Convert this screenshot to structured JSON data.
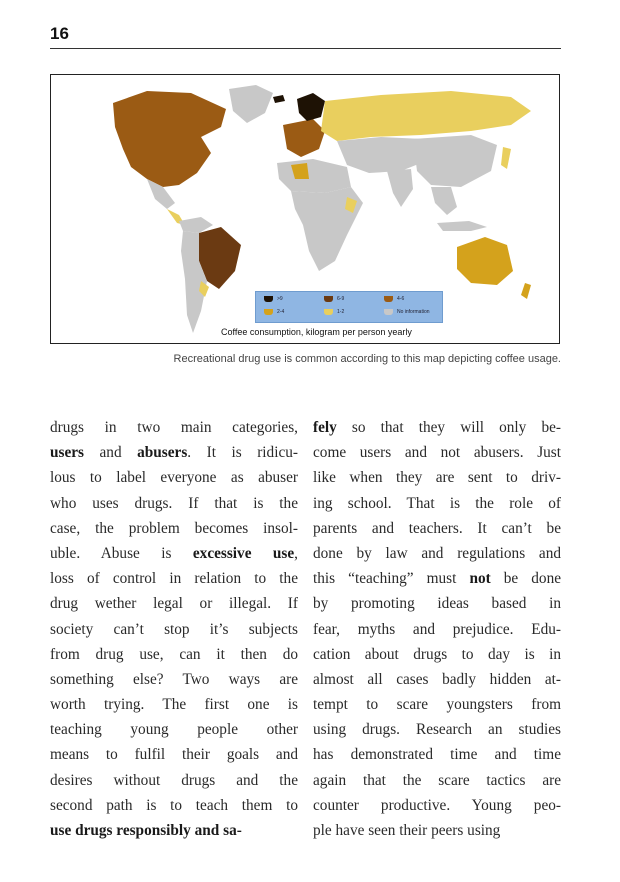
{
  "page": {
    "number": "16"
  },
  "figure": {
    "map_title": "Coffee consumption, kilogram per person yearly",
    "legend": [
      {
        "label": ">9",
        "color": "#1e1205"
      },
      {
        "label": "6-9",
        "color": "#6b3a12"
      },
      {
        "label": "4-6",
        "color": "#9b5b14"
      },
      {
        "label": "2-4",
        "color": "#d4a21c"
      },
      {
        "label": "1-2",
        "color": "#e9cf5e"
      },
      {
        "label": "No information",
        "color": "#c8c8c8"
      }
    ],
    "caption": "Recreational drug use is common according to this map depicting coffee usage."
  },
  "text": {
    "left": [
      [
        "drugs in two main categories,"
      ],
      [
        "",
        "users",
        " and ",
        "abusers",
        ". It is ridicu-"
      ],
      [
        "lous to label everyone as abuser"
      ],
      [
        "who uses drugs. If that is the"
      ],
      [
        "case, the problem becomes insol-"
      ],
      [
        "uble. Abuse is ",
        "excessive use",
        ","
      ],
      [
        "loss of control in relation to the"
      ],
      [
        "drug wether legal or illegal. If"
      ],
      [
        "society can’t stop it’s subjects"
      ],
      [
        "from drug use, can it then do"
      ],
      [
        "something else? Two ways are"
      ],
      [
        "worth trying. The first one is"
      ],
      [
        "teaching young people other"
      ],
      [
        "means to fulfil their goals and"
      ],
      [
        "desires without drugs and the"
      ],
      [
        "second path is to teach them to"
      ],
      [
        "",
        "use drugs responsibly and sa-"
      ]
    ],
    "right": [
      [
        "",
        "fely",
        " so that they will only be-"
      ],
      [
        "come users and not abusers. Just"
      ],
      [
        "like when they are sent to driv-"
      ],
      [
        "ing school. That is the role of"
      ],
      [
        "parents and teachers. It can’t be"
      ],
      [
        "done by law and regulations and"
      ],
      [
        "this “teaching” must ",
        "not",
        " be done"
      ],
      [
        "by promoting ideas based in"
      ],
      [
        "fear, myths and prejudice. Edu-"
      ],
      [
        "cation about drugs to day is in"
      ],
      [
        "almost all cases badly hidden at-"
      ],
      [
        "tempt to scare youngsters from"
      ],
      [
        "using drugs. Research an studies"
      ],
      [
        "has demonstrated time and time"
      ],
      [
        "again that the scare tactics are"
      ],
      [
        "counter productive. Young peo-"
      ],
      [
        "ple have seen their peers using"
      ]
    ]
  }
}
